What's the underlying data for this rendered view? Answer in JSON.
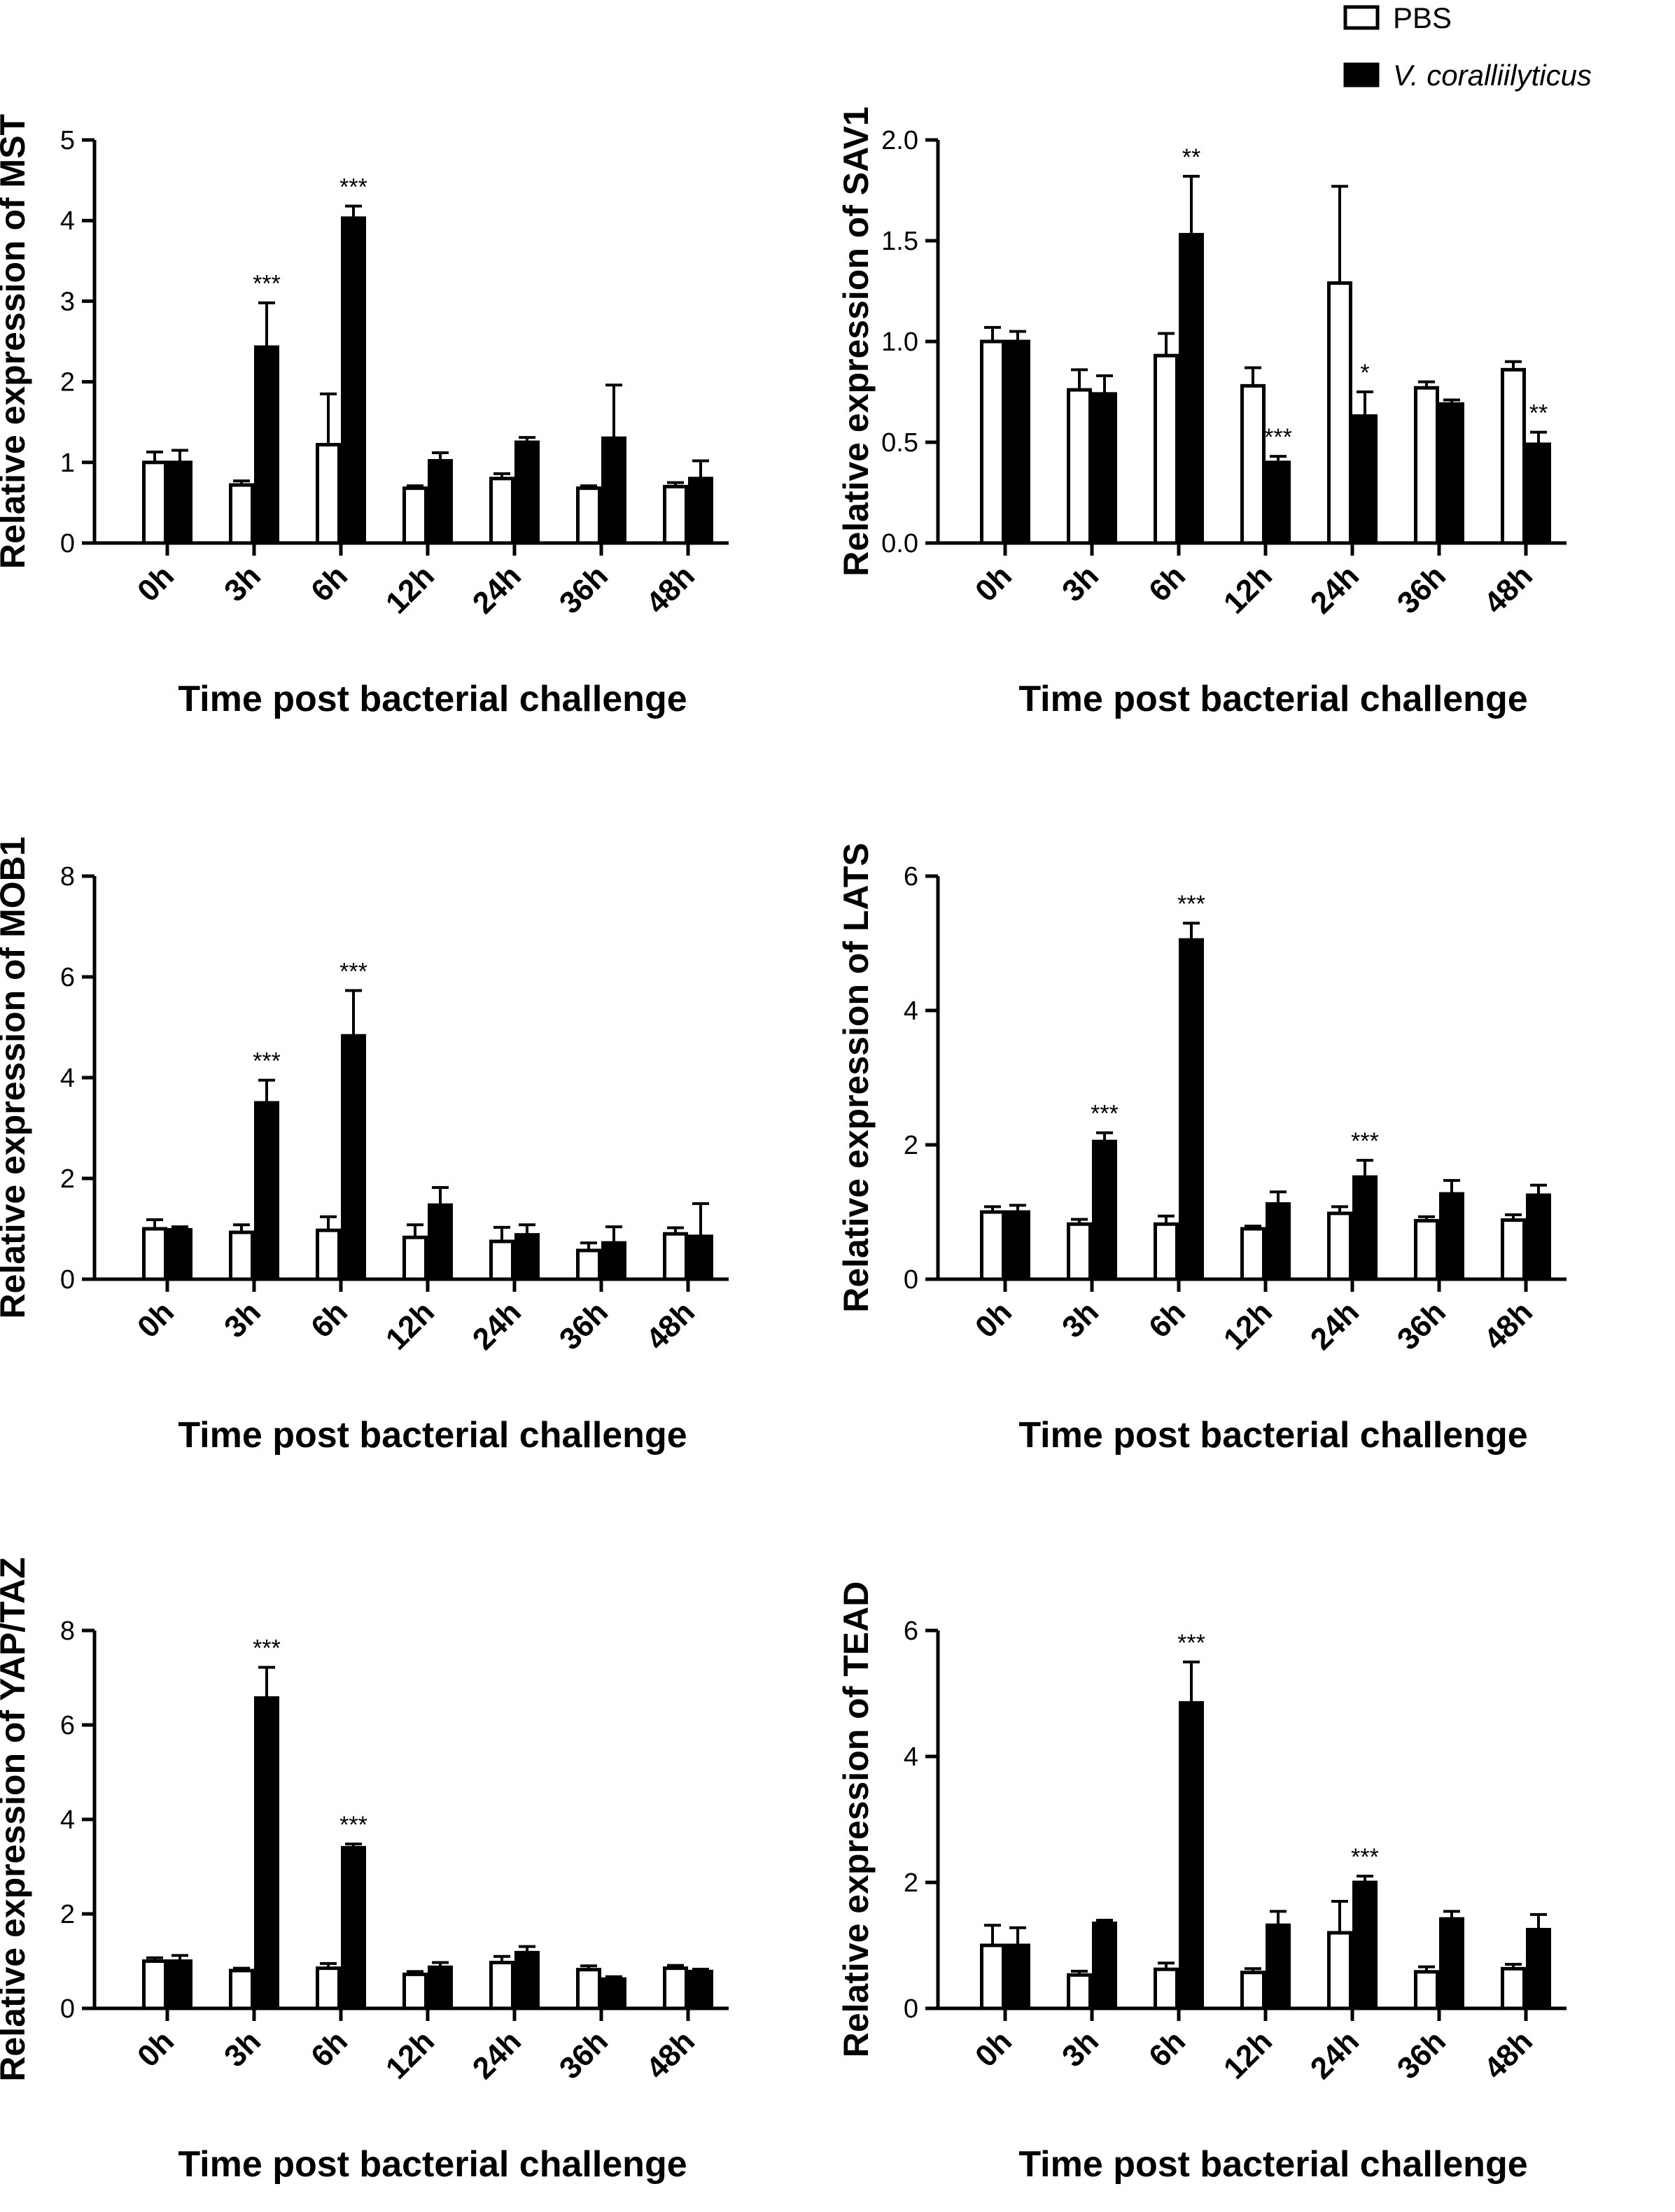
{
  "legend": {
    "items": [
      {
        "label": "PBS",
        "fill": "#ffffff",
        "italic": false
      },
      {
        "label": "V. coralliilyticus",
        "fill": "#000000",
        "italic": true
      }
    ]
  },
  "chart_data": [
    {
      "type": "bar",
      "ylabel": "Relative expression of MST",
      "xlabel": "Time post bacterial challenge",
      "categories": [
        "0h",
        "3h",
        "6h",
        "12h",
        "24h",
        "36h",
        "48h"
      ],
      "ylim": [
        0,
        5
      ],
      "yticks": [
        "0",
        "1",
        "2",
        "3",
        "4",
        "5"
      ],
      "series": [
        {
          "name": "PBS",
          "values": [
            1.0,
            0.72,
            1.22,
            0.68,
            0.8,
            0.68,
            0.7
          ],
          "errors": [
            0.13,
            0.05,
            0.63,
            0.03,
            0.06,
            0.03,
            0.05
          ]
        },
        {
          "name": "V. coralliilyticus",
          "values": [
            1.0,
            2.43,
            4.03,
            1.02,
            1.25,
            1.3,
            0.8
          ],
          "errors": [
            0.15,
            0.55,
            0.15,
            0.1,
            0.06,
            0.66,
            0.22
          ]
        }
      ],
      "significance": [
        {
          "category": "3h",
          "label": "***"
        },
        {
          "category": "6h",
          "label": "***"
        }
      ]
    },
    {
      "type": "bar",
      "ylabel": "Relative expression of SAV1",
      "xlabel": "Time post bacterial challenge",
      "categories": [
        "0h",
        "3h",
        "6h",
        "12h",
        "24h",
        "36h",
        "48h"
      ],
      "ylim": [
        0,
        2.0
      ],
      "yticks": [
        "0.0",
        "0.5",
        "1.0",
        "1.5",
        "2.0"
      ],
      "series": [
        {
          "name": "PBS",
          "values": [
            1.0,
            0.76,
            0.93,
            0.78,
            1.29,
            0.77,
            0.86
          ],
          "errors": [
            0.07,
            0.1,
            0.11,
            0.09,
            0.48,
            0.03,
            0.04
          ]
        },
        {
          "name": "V. coralliilyticus",
          "values": [
            1.0,
            0.74,
            1.53,
            0.4,
            0.63,
            0.69,
            0.49
          ],
          "errors": [
            0.05,
            0.09,
            0.29,
            0.03,
            0.12,
            0.02,
            0.06
          ]
        }
      ],
      "significance": [
        {
          "category": "6h",
          "label": "**"
        },
        {
          "category": "12h",
          "label": "***"
        },
        {
          "category": "24h",
          "label": "*"
        },
        {
          "category": "48h",
          "label": "**"
        }
      ]
    },
    {
      "type": "bar",
      "ylabel": "Relative expression of MOB1",
      "xlabel": "Time post bacterial challenge",
      "categories": [
        "0h",
        "3h",
        "6h",
        "12h",
        "24h",
        "36h",
        "48h"
      ],
      "ylim": [
        0,
        8
      ],
      "yticks": [
        "0",
        "2",
        "4",
        "6",
        "8"
      ],
      "series": [
        {
          "name": "PBS",
          "values": [
            1.0,
            0.93,
            0.97,
            0.83,
            0.75,
            0.57,
            0.9
          ],
          "errors": [
            0.18,
            0.15,
            0.27,
            0.25,
            0.28,
            0.15,
            0.12
          ]
        },
        {
          "name": "V. coralliilyticus",
          "values": [
            0.98,
            3.5,
            4.83,
            1.47,
            0.88,
            0.72,
            0.85
          ],
          "errors": [
            0.06,
            0.45,
            0.9,
            0.35,
            0.2,
            0.32,
            0.65
          ]
        }
      ],
      "significance": [
        {
          "category": "3h",
          "label": "***"
        },
        {
          "category": "6h",
          "label": "***"
        }
      ]
    },
    {
      "type": "bar",
      "ylabel": "Relative expression of LATS",
      "xlabel": "Time post bacterial challenge",
      "categories": [
        "0h",
        "3h",
        "6h",
        "12h",
        "24h",
        "36h",
        "48h"
      ],
      "ylim": [
        0,
        6
      ],
      "yticks": [
        "0",
        "2",
        "4",
        "6"
      ],
      "series": [
        {
          "name": "PBS",
          "values": [
            1.0,
            0.82,
            0.82,
            0.75,
            0.98,
            0.87,
            0.88
          ],
          "errors": [
            0.08,
            0.07,
            0.12,
            0.04,
            0.1,
            0.06,
            0.08
          ]
        },
        {
          "name": "V. coralliilyticus",
          "values": [
            1.0,
            2.05,
            5.05,
            1.12,
            1.52,
            1.27,
            1.25
          ],
          "errors": [
            0.1,
            0.13,
            0.25,
            0.18,
            0.25,
            0.2,
            0.15
          ]
        }
      ],
      "significance": [
        {
          "category": "3h",
          "label": "***"
        },
        {
          "category": "6h",
          "label": "***"
        },
        {
          "category": "24h",
          "label": "***"
        }
      ]
    },
    {
      "type": "bar",
      "ylabel": "Relative expression of YAP/TAZ",
      "xlabel": "Time post bacterial challenge",
      "categories": [
        "0h",
        "3h",
        "6h",
        "12h",
        "24h",
        "36h",
        "48h"
      ],
      "ylim": [
        0,
        8
      ],
      "yticks": [
        "0",
        "2",
        "4",
        "6",
        "8"
      ],
      "series": [
        {
          "name": "PBS",
          "values": [
            1.0,
            0.8,
            0.85,
            0.72,
            0.97,
            0.82,
            0.85
          ],
          "errors": [
            0.07,
            0.05,
            0.1,
            0.06,
            0.13,
            0.08,
            0.06
          ]
        },
        {
          "name": "V. coralliilyticus",
          "values": [
            1.0,
            6.57,
            3.4,
            0.87,
            1.18,
            0.62,
            0.78
          ],
          "errors": [
            0.12,
            0.65,
            0.08,
            0.1,
            0.13,
            0.05,
            0.05
          ]
        }
      ],
      "significance": [
        {
          "category": "3h",
          "label": "***"
        },
        {
          "category": "6h",
          "label": "***"
        }
      ]
    },
    {
      "type": "bar",
      "ylabel": "Relative expression of TEAD",
      "xlabel": "Time post bacterial challenge",
      "categories": [
        "0h",
        "3h",
        "6h",
        "12h",
        "24h",
        "36h",
        "48h"
      ],
      "ylim": [
        0,
        6
      ],
      "yticks": [
        "0",
        "2",
        "4",
        "6"
      ],
      "series": [
        {
          "name": "PBS",
          "values": [
            1.0,
            0.53,
            0.62,
            0.57,
            1.2,
            0.58,
            0.63
          ],
          "errors": [
            0.32,
            0.06,
            0.1,
            0.06,
            0.5,
            0.08,
            0.07
          ]
        },
        {
          "name": "V. coralliilyticus",
          "values": [
            1.0,
            1.35,
            4.85,
            1.32,
            2.0,
            1.42,
            1.25
          ],
          "errors": [
            0.28,
            0.05,
            0.65,
            0.22,
            0.1,
            0.12,
            0.24
          ]
        }
      ],
      "significance": [
        {
          "category": "6h",
          "label": "***"
        },
        {
          "category": "24h",
          "label": "***"
        }
      ]
    }
  ]
}
